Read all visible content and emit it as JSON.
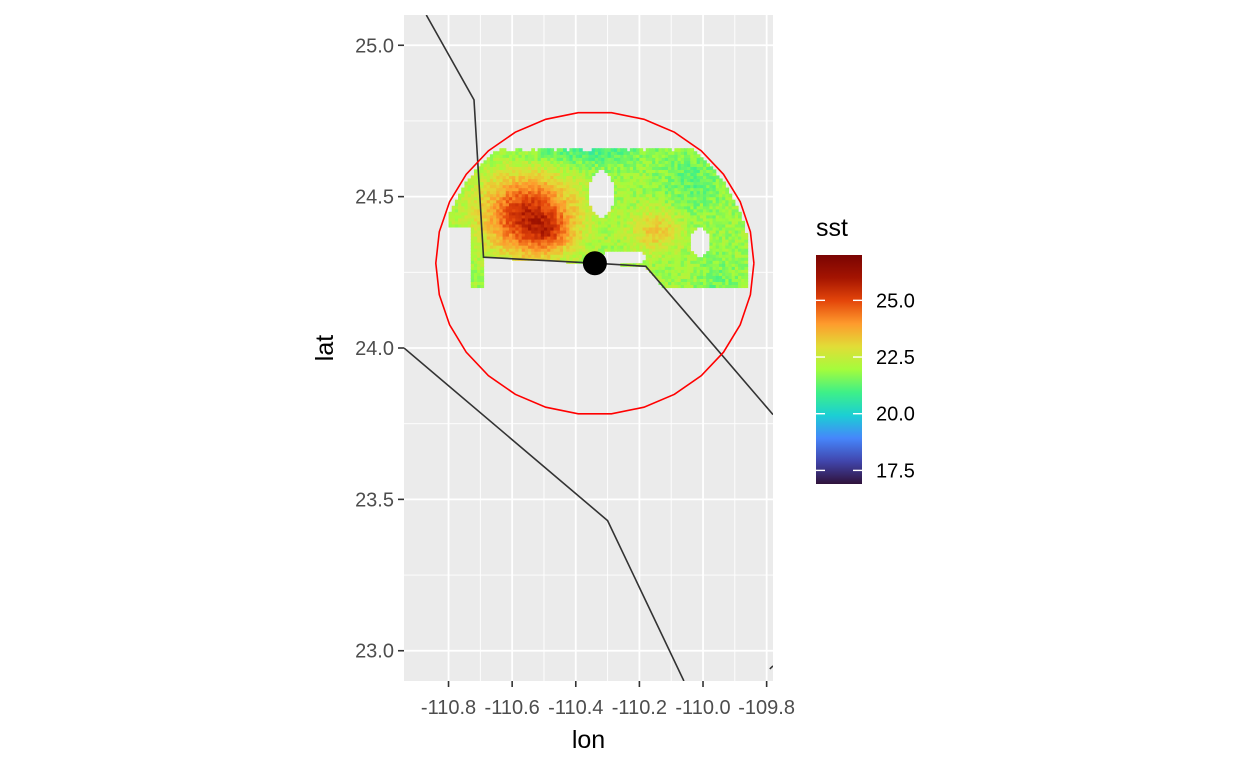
{
  "chart_data": {
    "type": "heatmap",
    "title": "",
    "xlabel": "lon",
    "ylabel": "lat",
    "xlim": [
      -110.94,
      -109.78
    ],
    "ylim": [
      22.9,
      25.1
    ],
    "grid": true,
    "x_ticks": [
      {
        "value": -110.8,
        "label": "-110.8"
      },
      {
        "value": -110.6,
        "label": "-110.6"
      },
      {
        "value": -110.4,
        "label": "-110.4"
      },
      {
        "value": -110.2,
        "label": "-110.2"
      },
      {
        "value": -110.0,
        "label": "-110.0"
      },
      {
        "value": -109.8,
        "label": "-109.8"
      }
    ],
    "y_ticks": [
      {
        "value": 23.0,
        "label": "23.0"
      },
      {
        "value": 23.5,
        "label": "23.5"
      },
      {
        "value": 24.0,
        "label": "24.0"
      },
      {
        "value": 24.5,
        "label": "24.5"
      },
      {
        "value": 25.0,
        "label": "25.0"
      }
    ],
    "fill_variable": "sst",
    "legend": {
      "title": "sst",
      "placement": "right",
      "range": [
        16.9,
        27.0
      ],
      "breaks": [
        {
          "value": 17.5,
          "label": "17.5"
        },
        {
          "value": 20.0,
          "label": "20.0"
        },
        {
          "value": 22.5,
          "label": "22.5"
        },
        {
          "value": 25.0,
          "label": "25.0"
        }
      ],
      "palette": [
        "#30123b",
        "#4146ad",
        "#4686fb",
        "#1bcfd4",
        "#3ef088",
        "#a4fc3c",
        "#e1dd37",
        "#fe9b2d",
        "#e4460a",
        "#a41401",
        "#7a0403"
      ]
    },
    "center_point": {
      "lon": -110.34,
      "lat": 24.28,
      "color": "#000000"
    },
    "buffer_circle": {
      "center_lon": -110.34,
      "center_lat": 24.28,
      "radius_deg": 0.5,
      "color": "#ff0000"
    },
    "coastlines": [
      {
        "name": "coast-north",
        "color": "#333333",
        "points": [
          [
            -110.87,
            25.1
          ],
          [
            -110.72,
            24.82
          ],
          [
            -110.69,
            24.3
          ],
          [
            -110.34,
            24.28
          ],
          [
            -110.18,
            24.27
          ],
          [
            -109.78,
            23.78
          ]
        ]
      },
      {
        "name": "coast-south",
        "color": "#333333",
        "points": [
          [
            -110.94,
            24.0
          ],
          [
            -110.3,
            23.43
          ],
          [
            -110.06,
            22.9
          ]
        ]
      },
      {
        "name": "coast-corner",
        "color": "#333333",
        "points": [
          [
            -109.79,
            22.94
          ],
          [
            -109.78,
            22.95
          ]
        ]
      }
    ],
    "field": {
      "lon_min": -110.8,
      "lon_max": -109.84,
      "lat_min": 24.1,
      "lat_max": 24.66,
      "cell_deg": 0.01,
      "base_sst": 21.9,
      "hotspots": [
        {
          "lon": -110.55,
          "lat": 24.44,
          "amp": 3.6,
          "sx": 0.14,
          "sy": 0.13
        },
        {
          "lon": -110.48,
          "lat": 24.38,
          "amp": 1.2,
          "sx": 0.07,
          "sy": 0.06
        },
        {
          "lon": -110.15,
          "lat": 24.39,
          "amp": 1.4,
          "sx": 0.08,
          "sy": 0.07
        },
        {
          "lon": -110.38,
          "lat": 24.65,
          "amp": -0.9,
          "sx": 0.2,
          "sy": 0.05
        },
        {
          "lon": -110.03,
          "lat": 24.55,
          "amp": -0.6,
          "sx": 0.1,
          "sy": 0.1
        },
        {
          "lon": -109.95,
          "lat": 24.2,
          "amp": -0.5,
          "sx": 0.06,
          "sy": 0.1
        }
      ],
      "holes": [
        {
          "lon": -110.32,
          "lat": 24.51,
          "rx": 0.04,
          "ry": 0.08
        },
        {
          "lon": -110.01,
          "lat": 24.35,
          "rx": 0.03,
          "ry": 0.05
        },
        {
          "lon": -110.25,
          "lat": 24.3,
          "rx": 0.07,
          "ry": 0.025
        }
      ]
    }
  }
}
